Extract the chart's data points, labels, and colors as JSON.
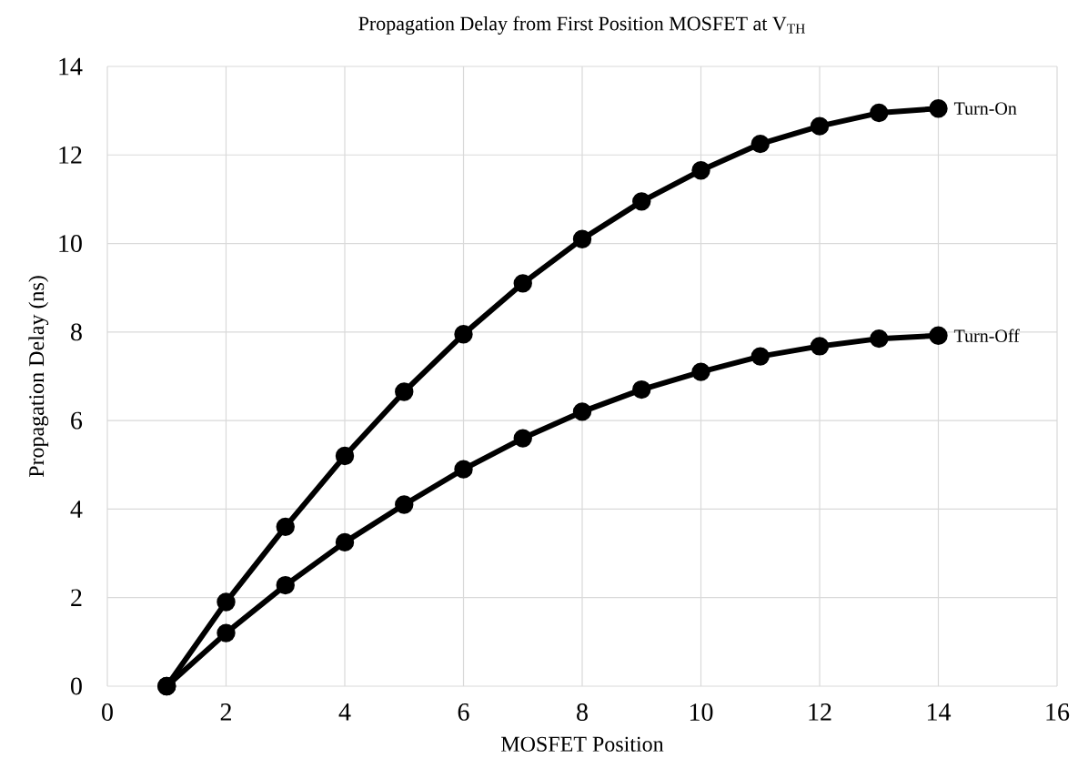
{
  "chart_data": {
    "type": "line",
    "title": "Propagation Delay from First Position MOSFET at V$_{TH}$",
    "xlabel": "MOSFET Position",
    "ylabel": "Propagation Delay (ns)",
    "x": [
      1,
      2,
      3,
      4,
      5,
      6,
      7,
      8,
      9,
      10,
      11,
      12,
      13,
      14
    ],
    "series": [
      {
        "name": "Turn-On",
        "color": "#000000",
        "values": [
          0,
          1.9,
          3.6,
          5.2,
          6.65,
          7.95,
          9.1,
          10.1,
          10.95,
          11.65,
          12.25,
          12.65,
          12.95,
          13.05
        ]
      },
      {
        "name": "Turn-Off",
        "color": "#000000",
        "values": [
          0,
          1.2,
          2.28,
          3.25,
          4.1,
          4.9,
          5.6,
          6.2,
          6.7,
          7.1,
          7.45,
          7.68,
          7.85,
          7.92
        ]
      }
    ],
    "xlim": [
      0,
      16
    ],
    "xticks": [
      0,
      2,
      4,
      6,
      8,
      10,
      12,
      14,
      16
    ],
    "ylim": [
      0,
      14
    ],
    "yticks": [
      0,
      2,
      4,
      6,
      8,
      10,
      12,
      14
    ],
    "grid": true,
    "marker": "circle",
    "line_style": "solid",
    "legend": false
  }
}
